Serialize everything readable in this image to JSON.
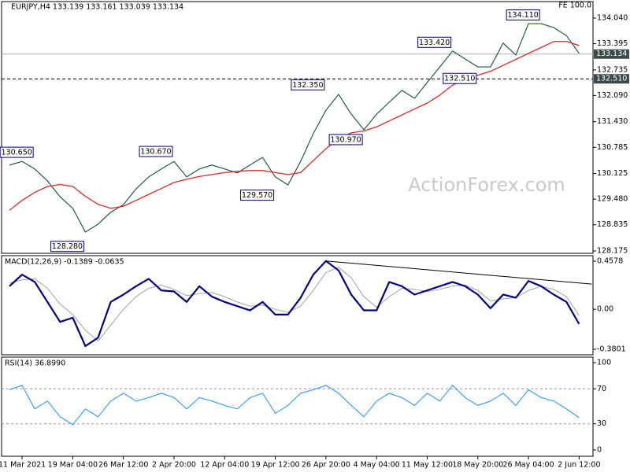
{
  "chart_data": [
    {
      "type": "line",
      "title": "EURJPY,H4  133.139 133.161 133.039 133.134",
      "marker": "FE 100.0",
      "watermark": "ActionForex.com",
      "ylim": [
        128.116,
        134.456
      ],
      "yticks": [
        {
          "value": 134.04,
          "label": "134.040"
        },
        {
          "value": 133.395,
          "label": "133.395"
        },
        {
          "value": 132.735,
          "label": "132.735"
        },
        {
          "value": 132.09,
          "label": "132.090"
        },
        {
          "value": 131.43,
          "label": "131.430"
        },
        {
          "value": 130.785,
          "label": "130.785"
        },
        {
          "value": 130.125,
          "label": "130.125"
        },
        {
          "value": 129.48,
          "label": "129.480"
        },
        {
          "value": 128.835,
          "label": "128.835"
        },
        {
          "value": 128.175,
          "label": "128.175"
        }
      ],
      "series": [
        {
          "color": "#1f5c45",
          "line_width": 1.2,
          "values": [
            130.34,
            130.43,
            130.24,
            129.94,
            129.54,
            129.25,
            128.65,
            128.85,
            129.15,
            129.34,
            129.74,
            130.04,
            130.24,
            130.43,
            130.04,
            130.24,
            130.34,
            130.24,
            130.14,
            130.34,
            130.53,
            130.04,
            129.84,
            130.43,
            131.13,
            131.72,
            132.12,
            131.62,
            131.23,
            131.62,
            131.92,
            132.22,
            132.02,
            132.42,
            132.81,
            133.21,
            133.01,
            132.81,
            132.81,
            133.41,
            133.11,
            133.9,
            133.9,
            133.8,
            133.6,
            133.15
          ]
        },
        {
          "color": "#d42a2a",
          "line_width": 1.3,
          "values": [
            129.2,
            129.45,
            129.65,
            129.8,
            129.85,
            129.8,
            129.55,
            129.35,
            129.25,
            129.3,
            129.45,
            129.6,
            129.75,
            129.9,
            129.98,
            130.05,
            130.1,
            130.15,
            130.18,
            130.2,
            130.2,
            130.15,
            130.1,
            130.15,
            130.45,
            130.75,
            131.0,
            131.15,
            131.2,
            131.3,
            131.45,
            131.6,
            131.75,
            131.9,
            132.1,
            132.35,
            132.5,
            132.6,
            132.7,
            132.85,
            133.0,
            133.15,
            133.3,
            133.45,
            133.45,
            133.35
          ]
        }
      ],
      "annotations": [
        {
          "x": 2,
          "value": 130.65,
          "label": "130.650"
        },
        {
          "x": 6,
          "value": 128.28,
          "label": "128.280"
        },
        {
          "x": 13,
          "value": 130.67,
          "label": "130.670"
        },
        {
          "x": 21,
          "value": 129.57,
          "label": "129.570"
        },
        {
          "x": 25,
          "value": 132.35,
          "label": "132.350"
        },
        {
          "x": 28,
          "value": 130.97,
          "label": "130.970"
        },
        {
          "x": 35,
          "value": 133.42,
          "label": "133.420"
        },
        {
          "x": 37,
          "value": 132.51,
          "label": "132.510"
        },
        {
          "x": 42,
          "value": 134.11,
          "label": "134.110"
        }
      ],
      "hlines": [
        {
          "value": 133.134,
          "label": "133.134",
          "style": "solid",
          "color": "#b0b0b0"
        },
        {
          "value": 132.51,
          "label": "132.510",
          "style": "dashed",
          "color": "#000000"
        }
      ]
    },
    {
      "type": "line",
      "label": "MACD(12,26,9) -0.1389 -0.0635",
      "ylim": [
        -0.4327,
        0.5104
      ],
      "yticks": [
        0.4578,
        {
          "value": 0,
          "label": "0.00"
        },
        -0.3801
      ],
      "series": [
        {
          "color": "#a0a0a0",
          "line_width": 1,
          "values": [
            0.25,
            0.28,
            0.29,
            0.2,
            0.05,
            -0.05,
            -0.2,
            -0.3,
            -0.15,
            0.0,
            0.12,
            0.2,
            0.23,
            0.19,
            0.13,
            0.15,
            0.16,
            0.12,
            0.07,
            0.03,
            0.04,
            0.0,
            -0.03,
            0.03,
            0.18,
            0.35,
            0.4,
            0.3,
            0.12,
            0.02,
            0.12,
            0.2,
            0.19,
            0.17,
            0.19,
            0.22,
            0.23,
            0.18,
            0.08,
            0.1,
            0.11,
            0.18,
            0.22,
            0.19,
            0.12,
            -0.06
          ]
        },
        {
          "color": "#000080",
          "line_width": 2.2,
          "values": [
            0.22,
            0.33,
            0.26,
            0.07,
            -0.12,
            -0.08,
            -0.35,
            -0.27,
            0.07,
            0.14,
            0.22,
            0.29,
            0.18,
            0.17,
            0.07,
            0.22,
            0.12,
            0.07,
            0.03,
            -0.01,
            0.07,
            -0.05,
            -0.05,
            0.11,
            0.33,
            0.46,
            0.37,
            0.14,
            -0.01,
            -0.01,
            0.26,
            0.22,
            0.14,
            0.18,
            0.22,
            0.26,
            0.22,
            0.14,
            0.01,
            0.14,
            0.11,
            0.27,
            0.22,
            0.14,
            0.07,
            -0.14
          ]
        }
      ],
      "trendline": {
        "color": "#000000",
        "x": [
          25,
          46
        ],
        "values": [
          0.46,
          0.24
        ]
      }
    },
    {
      "type": "line",
      "label": "RSI(14) 36.8990",
      "ylim": [
        -7.2,
        106.3
      ],
      "yticks": [
        100,
        70,
        30,
        0
      ],
      "levels": [
        70,
        30
      ],
      "categories": [
        null,
        "11 Mar 2021",
        null,
        null,
        null,
        "19 Mar 04:00",
        null,
        null,
        null,
        "26 Mar 12:00",
        null,
        null,
        null,
        "2 Apr 20:00",
        null,
        null,
        null,
        "12 Apr 04:00",
        null,
        null,
        null,
        "19 Apr 12:00",
        null,
        null,
        null,
        "26 Apr 20:00",
        null,
        null,
        null,
        "4 May 04:00",
        null,
        null,
        null,
        "11 May 12:00",
        null,
        null,
        null,
        "18 May 20:00",
        null,
        null,
        null,
        "26 May 04:00",
        null,
        null,
        null,
        "2 Jun 12:00"
      ],
      "series": [
        {
          "color": "#1e90ff",
          "line_width": 1,
          "values": [
            69,
            74,
            47,
            56,
            38,
            29,
            47,
            38,
            56,
            65,
            56,
            60,
            65,
            60,
            47,
            60,
            56,
            51,
            47,
            60,
            65,
            42,
            51,
            65,
            69,
            74,
            65,
            51,
            38,
            56,
            65,
            60,
            51,
            65,
            56,
            74,
            60,
            51,
            56,
            65,
            51,
            69,
            60,
            56,
            47,
            37
          ]
        }
      ]
    }
  ]
}
